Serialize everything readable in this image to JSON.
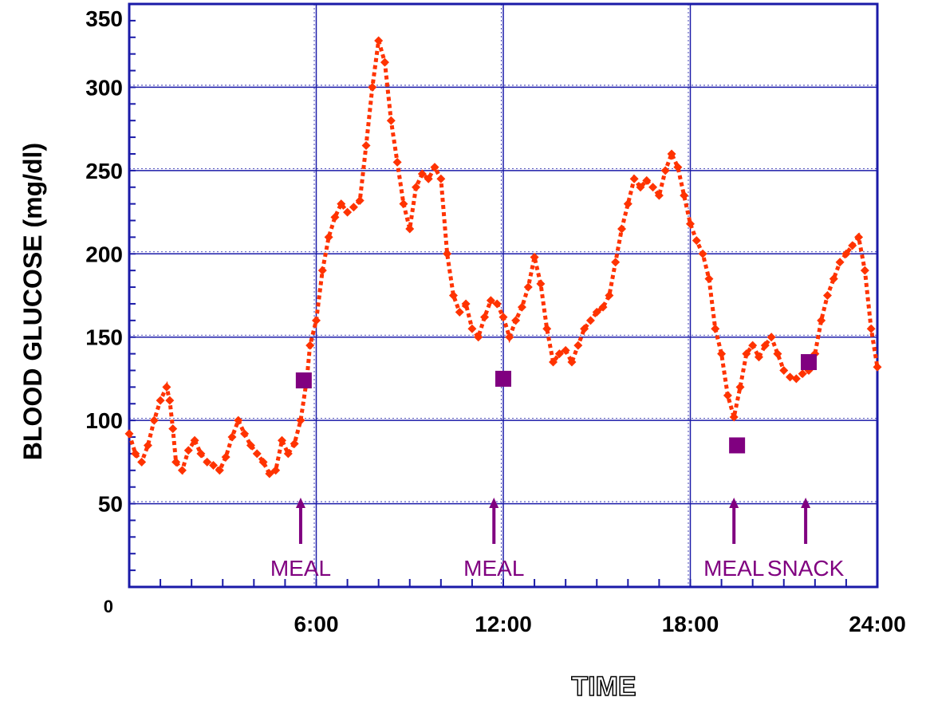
{
  "chart_data": {
    "type": "scatter",
    "title": "",
    "xlabel": "TIME",
    "ylabel": "BLOOD GLUCOSE (mg/dl)",
    "xlim": [
      0,
      24
    ],
    "ylim": [
      0,
      350
    ],
    "x_ticks": [
      {
        "value": 6,
        "label": "6:00"
      },
      {
        "value": 12,
        "label": "12:00"
      },
      {
        "value": 18,
        "label": "18:00"
      },
      {
        "value": 24,
        "label": "24:00"
      }
    ],
    "y_ticks": [
      {
        "value": 0,
        "label": "0"
      },
      {
        "value": 50,
        "label": "50"
      },
      {
        "value": 100,
        "label": "100"
      },
      {
        "value": 150,
        "label": "150"
      },
      {
        "value": 200,
        "label": "200"
      },
      {
        "value": 250,
        "label": "250"
      },
      {
        "value": 300,
        "label": "300"
      },
      {
        "value": 350,
        "label": "350"
      }
    ],
    "grid": true,
    "colors": {
      "series": "#ff3300",
      "reference": "#800080",
      "axis": "#1a1aa8",
      "grid": "#1a1aa8"
    },
    "series": [
      {
        "marker": "diamond",
        "points": [
          [
            0,
            92
          ],
          [
            0.2,
            80
          ],
          [
            0.4,
            75
          ],
          [
            0.6,
            85
          ],
          [
            0.8,
            100
          ],
          [
            1.0,
            112
          ],
          [
            1.2,
            120
          ],
          [
            1.3,
            112
          ],
          [
            1.4,
            95
          ],
          [
            1.5,
            75
          ],
          [
            1.7,
            70
          ],
          [
            1.9,
            82
          ],
          [
            2.1,
            88
          ],
          [
            2.3,
            80
          ],
          [
            2.5,
            75
          ],
          [
            2.7,
            73
          ],
          [
            2.9,
            70
          ],
          [
            3.1,
            78
          ],
          [
            3.3,
            90
          ],
          [
            3.5,
            100
          ],
          [
            3.7,
            92
          ],
          [
            3.9,
            85
          ],
          [
            4.1,
            80
          ],
          [
            4.3,
            75
          ],
          [
            4.5,
            68
          ],
          [
            4.7,
            70
          ],
          [
            4.9,
            88
          ],
          [
            5.1,
            80
          ],
          [
            5.3,
            86
          ],
          [
            5.5,
            100
          ],
          [
            5.7,
            125
          ],
          [
            5.8,
            145
          ],
          [
            6.0,
            160
          ],
          [
            6.2,
            190
          ],
          [
            6.4,
            210
          ],
          [
            6.6,
            222
          ],
          [
            6.8,
            230
          ],
          [
            7.0,
            225
          ],
          [
            7.2,
            228
          ],
          [
            7.4,
            232
          ],
          [
            7.6,
            265
          ],
          [
            7.8,
            300
          ],
          [
            8.0,
            328
          ],
          [
            8.2,
            315
          ],
          [
            8.4,
            280
          ],
          [
            8.6,
            255
          ],
          [
            8.8,
            230
          ],
          [
            9.0,
            215
          ],
          [
            9.2,
            240
          ],
          [
            9.4,
            248
          ],
          [
            9.6,
            245
          ],
          [
            9.8,
            252
          ],
          [
            10.0,
            245
          ],
          [
            10.2,
            200
          ],
          [
            10.4,
            175
          ],
          [
            10.6,
            165
          ],
          [
            10.8,
            170
          ],
          [
            11.0,
            155
          ],
          [
            11.2,
            150
          ],
          [
            11.4,
            162
          ],
          [
            11.6,
            172
          ],
          [
            11.8,
            170
          ],
          [
            12.0,
            162
          ],
          [
            12.2,
            150
          ],
          [
            12.4,
            160
          ],
          [
            12.6,
            168
          ],
          [
            12.8,
            180
          ],
          [
            13.0,
            198
          ],
          [
            13.2,
            182
          ],
          [
            13.4,
            155
          ],
          [
            13.6,
            135
          ],
          [
            13.8,
            140
          ],
          [
            14.0,
            142
          ],
          [
            14.2,
            135
          ],
          [
            14.4,
            145
          ],
          [
            14.6,
            155
          ],
          [
            14.8,
            160
          ],
          [
            15.0,
            165
          ],
          [
            15.2,
            168
          ],
          [
            15.4,
            175
          ],
          [
            15.6,
            195
          ],
          [
            15.8,
            215
          ],
          [
            16.0,
            230
          ],
          [
            16.2,
            245
          ],
          [
            16.4,
            240
          ],
          [
            16.6,
            244
          ],
          [
            16.8,
            240
          ],
          [
            17.0,
            235
          ],
          [
            17.2,
            250
          ],
          [
            17.4,
            260
          ],
          [
            17.6,
            252
          ],
          [
            17.8,
            235
          ],
          [
            18.0,
            218
          ],
          [
            18.2,
            208
          ],
          [
            18.4,
            200
          ],
          [
            18.6,
            185
          ],
          [
            18.8,
            155
          ],
          [
            19.0,
            140
          ],
          [
            19.2,
            115
          ],
          [
            19.4,
            102
          ],
          [
            19.6,
            120
          ],
          [
            19.8,
            140
          ],
          [
            20.0,
            145
          ],
          [
            20.2,
            138
          ],
          [
            20.4,
            145
          ],
          [
            20.6,
            150
          ],
          [
            20.8,
            140
          ],
          [
            21.0,
            130
          ],
          [
            21.2,
            126
          ],
          [
            21.4,
            125
          ],
          [
            21.6,
            128
          ],
          [
            21.8,
            130
          ],
          [
            22.0,
            140
          ],
          [
            22.2,
            160
          ],
          [
            22.4,
            175
          ],
          [
            22.6,
            185
          ],
          [
            22.8,
            195
          ],
          [
            23.0,
            200
          ],
          [
            23.2,
            205
          ],
          [
            23.4,
            210
          ],
          [
            23.6,
            190
          ],
          [
            23.8,
            155
          ],
          [
            24.0,
            132
          ]
        ]
      },
      {
        "marker": "square",
        "points": [
          [
            5.6,
            124
          ],
          [
            12.0,
            125
          ],
          [
            19.5,
            85
          ],
          [
            21.8,
            135
          ]
        ]
      }
    ],
    "annotations": [
      {
        "x": 5.5,
        "label": "MEAL"
      },
      {
        "x": 11.7,
        "label": "MEAL"
      },
      {
        "x": 19.4,
        "label": "MEAL"
      },
      {
        "x": 21.7,
        "label": "SNACK"
      }
    ]
  }
}
